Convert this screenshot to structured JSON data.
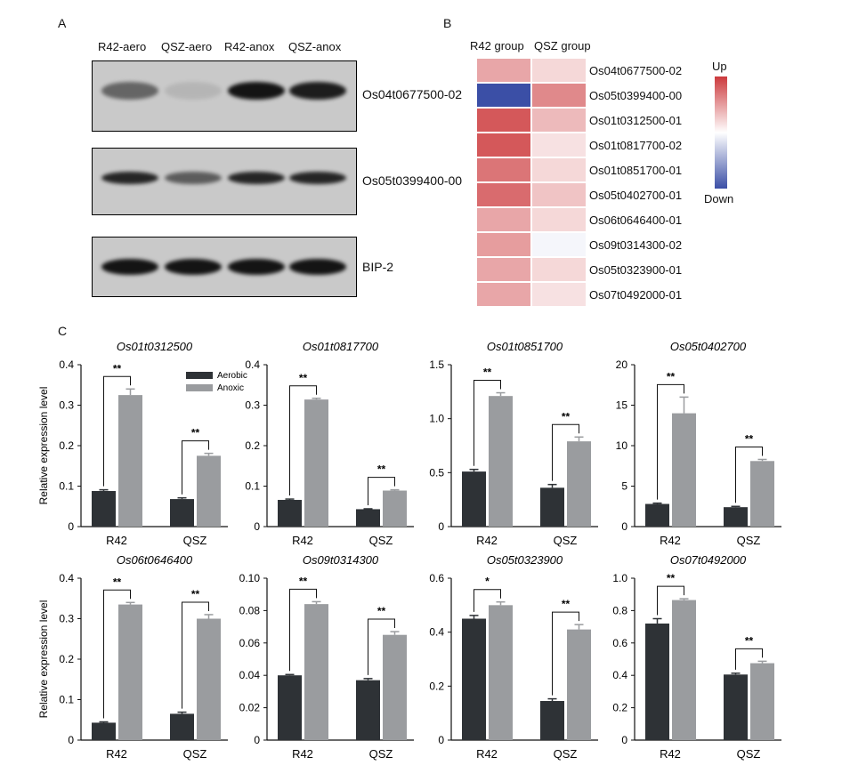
{
  "panels": {
    "a": "A",
    "b": "B",
    "c": "C"
  },
  "western": {
    "lanes": [
      "R42-aero",
      "QSZ-aero",
      "R42-anox",
      "QSZ-anox"
    ],
    "blots": [
      {
        "label": "Os04t0677500-02",
        "intensities": [
          0.55,
          0.1,
          1.0,
          0.95
        ]
      },
      {
        "label": "Os05t0399400-00",
        "intensities": [
          0.9,
          0.6,
          0.9,
          0.9
        ]
      },
      {
        "label": "BIP-2",
        "intensities": [
          1.0,
          1.0,
          1.0,
          1.0
        ]
      }
    ],
    "colors": {
      "background": "#c9c9c9",
      "band": "#141414"
    }
  },
  "heatmap": {
    "columns": [
      "R42 group",
      "QSZ group"
    ],
    "rows": [
      {
        "gene": "Os04t0677500-02",
        "values": [
          0.45,
          0.2
        ]
      },
      {
        "gene": "Os05t0399400-00",
        "values": [
          -1.0,
          0.6
        ]
      },
      {
        "gene": "Os01t0312500-01",
        "values": [
          0.85,
          0.35
        ]
      },
      {
        "gene": "Os01t0817700-02",
        "values": [
          0.85,
          0.15
        ]
      },
      {
        "gene": "Os01t0851700-01",
        "values": [
          0.7,
          0.2
        ]
      },
      {
        "gene": "Os05t0402700-01",
        "values": [
          0.75,
          0.3
        ]
      },
      {
        "gene": "Os06t0646400-01",
        "values": [
          0.45,
          0.2
        ]
      },
      {
        "gene": "Os09t0314300-02",
        "values": [
          0.5,
          -0.05
        ]
      },
      {
        "gene": "Os05t0323900-01",
        "values": [
          0.45,
          0.2
        ]
      },
      {
        "gene": "Os07t0492000-01",
        "values": [
          0.45,
          0.15
        ]
      }
    ],
    "legend": {
      "up": "Up",
      "down": "Down"
    },
    "colors": {
      "up": "#cc3a3d",
      "mid": "#ffffff",
      "down": "#3b4fa6"
    }
  },
  "chart_data": [
    {
      "type": "bar",
      "title": "Os01t0312500",
      "categories": [
        "R42",
        "QSZ"
      ],
      "ylabel": "Relative expression level",
      "ylim": [
        0,
        0.4
      ],
      "yticks": [
        "0",
        "0.1",
        "0.2",
        "0.3",
        "0.4"
      ],
      "series": [
        {
          "name": "Aerobic",
          "values": [
            0.088,
            0.068
          ],
          "errors": [
            0.003,
            0.003
          ]
        },
        {
          "name": "Anoxic",
          "values": [
            0.325,
            0.175
          ],
          "errors": [
            0.015,
            0.006
          ]
        }
      ],
      "significance": [
        "**",
        "**"
      ],
      "legend": true
    },
    {
      "type": "bar",
      "title": "Os01t0817700",
      "categories": [
        "R42",
        "QSZ"
      ],
      "ylabel": "",
      "ylim": [
        0,
        0.4
      ],
      "yticks": [
        "0",
        "0.1",
        "0.2",
        "0.3",
        "0.4"
      ],
      "series": [
        {
          "name": "Aerobic",
          "values": [
            0.066,
            0.043
          ],
          "errors": [
            0.002,
            0.001
          ]
        },
        {
          "name": "Anoxic",
          "values": [
            0.314,
            0.089
          ],
          "errors": [
            0.003,
            0.002
          ]
        }
      ],
      "significance": [
        "**",
        "**"
      ]
    },
    {
      "type": "bar",
      "title": "Os01t0851700",
      "categories": [
        "R42",
        "QSZ"
      ],
      "ylabel": "",
      "ylim": [
        0,
        1.5
      ],
      "yticks": [
        "0",
        "0.5",
        "1.0",
        "1.5"
      ],
      "series": [
        {
          "name": "Aerobic",
          "values": [
            0.51,
            0.36
          ],
          "errors": [
            0.02,
            0.03
          ]
        },
        {
          "name": "Anoxic",
          "values": [
            1.21,
            0.79
          ],
          "errors": [
            0.03,
            0.04
          ]
        }
      ],
      "significance": [
        "**",
        "**"
      ]
    },
    {
      "type": "bar",
      "title": "Os05t0402700",
      "categories": [
        "R42",
        "QSZ"
      ],
      "ylabel": "",
      "ylim": [
        0,
        20
      ],
      "yticks": [
        "0",
        "5",
        "10",
        "15",
        "20"
      ],
      "series": [
        {
          "name": "Aerobic",
          "values": [
            2.8,
            2.4
          ],
          "errors": [
            0.1,
            0.1
          ]
        },
        {
          "name": "Anoxic",
          "values": [
            14.0,
            8.1
          ],
          "errors": [
            2.0,
            0.2
          ]
        }
      ],
      "significance": [
        "**",
        "**"
      ]
    },
    {
      "type": "bar",
      "title": "Os06t0646400",
      "categories": [
        "R42",
        "QSZ"
      ],
      "ylabel": "Relative expression level",
      "ylim": [
        0,
        0.4
      ],
      "yticks": [
        "0",
        "0.1",
        "0.2",
        "0.3",
        "0.4"
      ],
      "series": [
        {
          "name": "Aerobic",
          "values": [
            0.043,
            0.065
          ],
          "errors": [
            0.002,
            0.004
          ]
        },
        {
          "name": "Anoxic",
          "values": [
            0.335,
            0.3
          ],
          "errors": [
            0.005,
            0.01
          ]
        }
      ],
      "significance": [
        "**",
        "**"
      ]
    },
    {
      "type": "bar",
      "title": "Os09t0314300",
      "categories": [
        "R42",
        "QSZ"
      ],
      "ylabel": "",
      "ylim": [
        0,
        0.1
      ],
      "yticks": [
        "0",
        "0.02",
        "0.04",
        "0.06",
        "0.08",
        "0.10"
      ],
      "series": [
        {
          "name": "Aerobic",
          "values": [
            0.04,
            0.037
          ],
          "errors": [
            0.0005,
            0.001
          ]
        },
        {
          "name": "Anoxic",
          "values": [
            0.084,
            0.065
          ],
          "errors": [
            0.0015,
            0.002
          ]
        }
      ],
      "significance": [
        "**",
        "**"
      ]
    },
    {
      "type": "bar",
      "title": "Os05t0323900",
      "categories": [
        "R42",
        "QSZ"
      ],
      "ylabel": "",
      "ylim": [
        0,
        0.6
      ],
      "yticks": [
        "0",
        "0.2",
        "0.4",
        "0.6"
      ],
      "series": [
        {
          "name": "Aerobic",
          "values": [
            0.45,
            0.145
          ],
          "errors": [
            0.012,
            0.008
          ]
        },
        {
          "name": "Anoxic",
          "values": [
            0.5,
            0.41
          ],
          "errors": [
            0.012,
            0.018
          ]
        }
      ],
      "significance": [
        "*",
        "**"
      ]
    },
    {
      "type": "bar",
      "title": "Os07t0492000",
      "categories": [
        "R42",
        "QSZ"
      ],
      "ylabel": "",
      "ylim": [
        0,
        1.0
      ],
      "yticks": [
        "0",
        "0.2",
        "0.4",
        "0.6",
        "0.8",
        "1.0"
      ],
      "series": [
        {
          "name": "Aerobic",
          "values": [
            0.72,
            0.405
          ],
          "errors": [
            0.03,
            0.008
          ]
        },
        {
          "name": "Anoxic",
          "values": [
            0.865,
            0.475
          ],
          "errors": [
            0.008,
            0.012
          ]
        }
      ],
      "significance": [
        "**",
        "**"
      ]
    }
  ],
  "bar_colors": {
    "Aerobic": "#2e3236",
    "Anoxic": "#9a9c9f"
  }
}
